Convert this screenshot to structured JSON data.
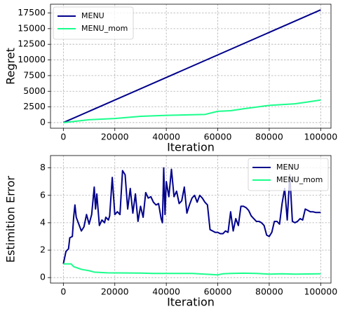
{
  "chart_data": [
    {
      "type": "line",
      "xlabel": "Iteration",
      "ylabel": "Regret",
      "grid": true,
      "legend": "upper left",
      "xlim": [
        -5000,
        104000
      ],
      "ylim": [
        -900,
        18900
      ],
      "xticks": [
        0,
        20000,
        40000,
        60000,
        80000,
        100000
      ],
      "yticks": [
        0,
        2500,
        5000,
        7500,
        10000,
        12500,
        15000,
        17500
      ],
      "series": [
        {
          "name": "MENU",
          "color": "#00008b",
          "x": [
            0,
            100000
          ],
          "values": [
            0,
            18000
          ]
        },
        {
          "name": "MENU_mom",
          "color": "#1aff8c",
          "x": [
            0,
            10000,
            20000,
            30000,
            40000,
            50000,
            55000,
            60000,
            65000,
            70000,
            80000,
            90000,
            95000,
            100000
          ],
          "values": [
            0,
            450,
            650,
            1000,
            1150,
            1250,
            1300,
            1800,
            1900,
            2200,
            2750,
            3000,
            3300,
            3600
          ]
        }
      ]
    },
    {
      "type": "line",
      "xlabel": "Iteration",
      "ylabel": "Estimition Error",
      "grid": true,
      "legend": "upper right",
      "xlim": [
        -5000,
        104000
      ],
      "ylim": [
        -0.4,
        8.9
      ],
      "xticks": [
        0,
        20000,
        40000,
        60000,
        80000,
        100000
      ],
      "yticks": [
        0,
        2,
        4,
        6,
        8
      ],
      "series": [
        {
          "name": "MENU",
          "color": "#00008b",
          "x": [
            0,
            1000,
            2000,
            2500,
            3500,
            4000,
            4500,
            5000,
            6000,
            7000,
            8000,
            9000,
            10000,
            11000,
            12000,
            12500,
            13000,
            14000,
            15000,
            16000,
            16500,
            17500,
            18000,
            19000,
            20000,
            21000,
            22000,
            23000,
            24000,
            25000,
            26000,
            27000,
            28000,
            29000,
            30000,
            31000,
            32000,
            33000,
            34000,
            35000,
            36000,
            37000,
            38000,
            38500,
            39000,
            39500,
            40000,
            41000,
            42000,
            43000,
            44000,
            45000,
            46000,
            47000,
            48000,
            49000,
            50000,
            51000,
            52000,
            53000,
            54000,
            55000,
            56000,
            57000,
            58000,
            59000,
            60000,
            61000,
            62000,
            63000,
            64000,
            65000,
            66000,
            67000,
            68000,
            69000,
            70000,
            71000,
            72000,
            73000,
            74000,
            75000,
            76000,
            77000,
            78000,
            79000,
            80000,
            81000,
            82000,
            83000,
            84000,
            85000,
            86000,
            87000,
            88000,
            89000,
            90000,
            91000,
            92000,
            93000,
            94000,
            95000,
            96000,
            97000,
            98000,
            100000
          ],
          "values": [
            1.0,
            1.9,
            2.1,
            2.9,
            3.0,
            4.4,
            5.3,
            4.4,
            3.9,
            3.4,
            3.7,
            4.6,
            3.9,
            4.6,
            6.6,
            5.0,
            6.1,
            3.8,
            4.2,
            4.0,
            4.4,
            4.2,
            4.5,
            7.3,
            4.6,
            4.8,
            4.6,
            7.8,
            7.5,
            5.0,
            6.5,
            4.7,
            6.1,
            4.1,
            5.2,
            4.4,
            6.2,
            5.8,
            5.9,
            5.5,
            5.3,
            5.4,
            4.3,
            4.0,
            8.0,
            4.6,
            7.0,
            5.9,
            7.9,
            5.9,
            6.3,
            5.4,
            5.6,
            6.6,
            4.7,
            5.3,
            5.8,
            6.0,
            5.5,
            6.0,
            5.8,
            5.5,
            5.3,
            3.5,
            3.4,
            3.3,
            3.3,
            3.2,
            3.2,
            3.4,
            3.3,
            4.8,
            3.4,
            4.3,
            3.8,
            5.2,
            5.2,
            5.1,
            4.9,
            4.5,
            4.3,
            4.1,
            4.1,
            4.0,
            3.8,
            3.1,
            3.0,
            3.3,
            4.1,
            4.1,
            3.9,
            5.4,
            6.5,
            4.2,
            7.5,
            4.1,
            4.0,
            4.1,
            4.3,
            4.2,
            5.0,
            4.9,
            4.8,
            4.8,
            4.75,
            4.75
          ]
        },
        {
          "name": "MENU_mom",
          "color": "#1aff8c",
          "x": [
            0,
            3000,
            4000,
            7000,
            10000,
            12000,
            17000,
            30000,
            35000,
            50000,
            55000,
            60000,
            62000,
            65000,
            70000,
            75000,
            80000,
            85000,
            90000,
            100000
          ],
          "values": [
            1.0,
            1.0,
            0.8,
            0.6,
            0.5,
            0.4,
            0.35,
            0.33,
            0.3,
            0.3,
            0.25,
            0.2,
            0.28,
            0.3,
            0.32,
            0.3,
            0.25,
            0.28,
            0.25,
            0.28
          ]
        }
      ]
    }
  ]
}
